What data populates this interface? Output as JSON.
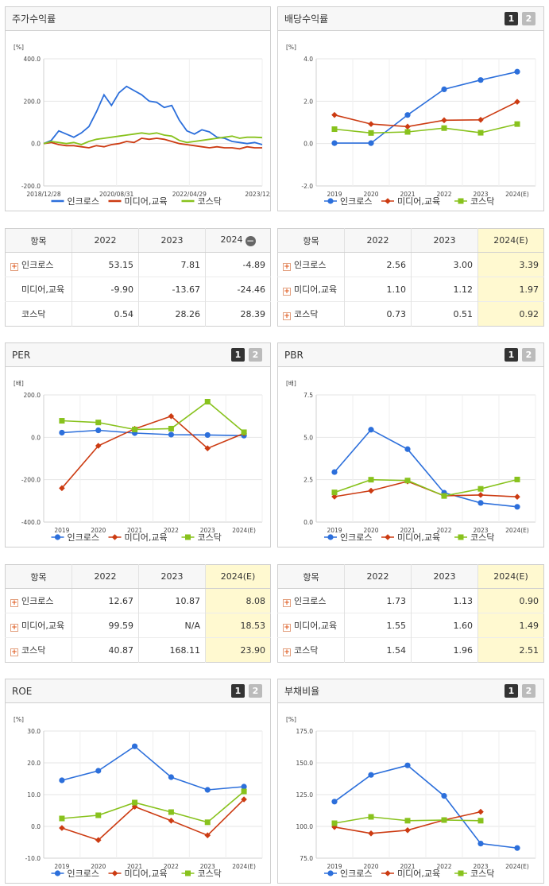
{
  "legend": [
    "인크로스",
    "미디어,교육",
    "코스닥"
  ],
  "colors": {
    "s0": "#2c6fdb",
    "s1": "#cc3b12",
    "s2": "#88c21d"
  },
  "panels": {
    "stock": {
      "title": "주가수익률"
    },
    "div": {
      "title": "배당수익률",
      "p1": "1",
      "p2": "2"
    },
    "per": {
      "title": "PER",
      "p1": "1",
      "p2": "2"
    },
    "pbr": {
      "title": "PBR",
      "p1": "1",
      "p2": "2"
    },
    "roe": {
      "title": "ROE",
      "p1": "1",
      "p2": "2"
    },
    "debt": {
      "title": "부채비율",
      "p1": "1",
      "p2": "2"
    }
  },
  "tables": {
    "stock": {
      "headers": [
        "항목",
        "2022",
        "2023",
        "2024"
      ],
      "rows": [
        {
          "name": "인크로스",
          "v": [
            "53.15",
            "7.81",
            "-4.89"
          ]
        },
        {
          "name": "미디어,교육",
          "v": [
            "-9.90",
            "-13.67",
            "-24.46"
          ]
        },
        {
          "name": "코스닥",
          "v": [
            "0.54",
            "28.26",
            "28.39"
          ]
        }
      ]
    },
    "div": {
      "headers": [
        "항목",
        "2022",
        "2023",
        "2024(E)"
      ],
      "rows": [
        {
          "name": "인크로스",
          "v": [
            "2.56",
            "3.00",
            "3.39"
          ]
        },
        {
          "name": "미디어,교육",
          "v": [
            "1.10",
            "1.12",
            "1.97"
          ]
        },
        {
          "name": "코스닥",
          "v": [
            "0.73",
            "0.51",
            "0.92"
          ]
        }
      ]
    },
    "per": {
      "headers": [
        "항목",
        "2022",
        "2023",
        "2024(E)"
      ],
      "rows": [
        {
          "name": "인크로스",
          "v": [
            "12.67",
            "10.87",
            "8.08"
          ]
        },
        {
          "name": "미디어,교육",
          "v": [
            "99.59",
            "N/A",
            "18.53"
          ]
        },
        {
          "name": "코스닥",
          "v": [
            "40.87",
            "168.11",
            "23.90"
          ]
        }
      ]
    },
    "pbr": {
      "headers": [
        "항목",
        "2022",
        "2023",
        "2024(E)"
      ],
      "rows": [
        {
          "name": "인크로스",
          "v": [
            "1.73",
            "1.13",
            "0.90"
          ]
        },
        {
          "name": "미디어,교육",
          "v": [
            "1.55",
            "1.60",
            "1.49"
          ]
        },
        {
          "name": "코스닥",
          "v": [
            "1.54",
            "1.96",
            "2.51"
          ]
        }
      ]
    }
  },
  "chart_data": [
    {
      "id": "stock",
      "type": "line",
      "unit": "[%]",
      "ylim": [
        -200,
        400
      ],
      "yticks": [
        "400.0",
        "200.0",
        "0.0",
        "-200.0"
      ],
      "xticks": [
        "2018/12/28",
        "2020/08/31",
        "2022/04/29",
        "2023/12/28"
      ],
      "x": [
        "2018/12",
        "2019/03",
        "2019/06",
        "2019/09",
        "2019/12",
        "2020/03",
        "2020/06",
        "2020/08",
        "2020/10",
        "2020/12",
        "2021/02",
        "2021/04",
        "2021/06",
        "2021/08",
        "2021/10",
        "2021/12",
        "2022/02",
        "2022/04",
        "2022/06",
        "2022/08",
        "2022/10",
        "2022/12",
        "2023/02",
        "2023/04",
        "2023/06",
        "2023/08",
        "2023/10",
        "2023/12",
        "2024/02",
        "2024/04"
      ],
      "series": [
        {
          "name": "인크로스",
          "values": [
            0,
            15,
            60,
            45,
            30,
            50,
            80,
            150,
            230,
            180,
            240,
            270,
            250,
            230,
            200,
            195,
            170,
            180,
            110,
            60,
            45,
            65,
            55,
            30,
            25,
            10,
            5,
            0,
            5,
            -5
          ]
        },
        {
          "name": "미디어,교육",
          "values": [
            0,
            5,
            -5,
            -10,
            -10,
            -15,
            -20,
            -10,
            -15,
            -5,
            0,
            10,
            5,
            25,
            20,
            25,
            20,
            10,
            0,
            -5,
            -10,
            -15,
            -20,
            -15,
            -20,
            -20,
            -25,
            -15,
            -20,
            -20
          ]
        },
        {
          "name": "코스닥",
          "values": [
            0,
            10,
            5,
            0,
            5,
            -5,
            10,
            20,
            25,
            30,
            35,
            40,
            45,
            50,
            45,
            50,
            40,
            35,
            15,
            5,
            10,
            15,
            20,
            25,
            30,
            35,
            25,
            30,
            30,
            28
          ]
        }
      ]
    },
    {
      "id": "div",
      "type": "line",
      "unit": "[%]",
      "ylim": [
        -2,
        4
      ],
      "yticks": [
        "4.0",
        "2.0",
        "0.0",
        "-2.0"
      ],
      "x": [
        "2019",
        "2020",
        "2021",
        "2022",
        "2023",
        "2024(E)"
      ],
      "series": [
        {
          "name": "인크로스",
          "values": [
            0.02,
            0.02,
            1.35,
            2.56,
            3.0,
            3.39
          ]
        },
        {
          "name": "미디어,교육",
          "values": [
            1.35,
            0.92,
            0.8,
            1.1,
            1.12,
            1.97
          ]
        },
        {
          "name": "코스닥",
          "values": [
            0.68,
            0.5,
            0.55,
            0.73,
            0.51,
            0.92
          ]
        }
      ]
    },
    {
      "id": "per",
      "type": "line",
      "unit": "[배]",
      "ylim": [
        -400,
        200
      ],
      "yticks": [
        "200.0",
        "0.0",
        "-200.0",
        "-400.0"
      ],
      "x": [
        "2019",
        "2020",
        "2021",
        "2022",
        "2023",
        "2024(E)"
      ],
      "series": [
        {
          "name": "인크로스",
          "values": [
            22,
            33,
            20,
            12.67,
            10.87,
            8.08
          ]
        },
        {
          "name": "미디어,교육",
          "values": [
            -240,
            -40,
            40,
            99.59,
            -52,
            18.53
          ]
        },
        {
          "name": "코스닥",
          "values": [
            78,
            70,
            37,
            40.87,
            168.11,
            23.9
          ]
        }
      ]
    },
    {
      "id": "pbr",
      "type": "line",
      "unit": "[배]",
      "ylim": [
        0,
        7.5
      ],
      "yticks": [
        "7.5",
        "5.0",
        "2.5",
        "0.0"
      ],
      "x": [
        "2019",
        "2020",
        "2021",
        "2022",
        "2023",
        "2024(E)"
      ],
      "series": [
        {
          "name": "인크로스",
          "values": [
            2.95,
            5.45,
            4.3,
            1.73,
            1.13,
            0.9
          ]
        },
        {
          "name": "미디어,교육",
          "values": [
            1.5,
            1.85,
            2.4,
            1.55,
            1.6,
            1.49
          ]
        },
        {
          "name": "코스닥",
          "values": [
            1.75,
            2.5,
            2.45,
            1.54,
            1.96,
            2.51
          ]
        }
      ]
    },
    {
      "id": "roe",
      "type": "line",
      "unit": "[%]",
      "ylim": [
        -10,
        30
      ],
      "yticks": [
        "30.0",
        "20.0",
        "10.0",
        "0.0",
        "-10.0"
      ],
      "x": [
        "2019",
        "2020",
        "2021",
        "2022",
        "2023",
        "2024(E)"
      ],
      "series": [
        {
          "name": "인크로스",
          "values": [
            14.5,
            17.5,
            25.2,
            15.5,
            11.5,
            12.5
          ]
        },
        {
          "name": "미디어,교육",
          "values": [
            -0.5,
            -4.3,
            6.2,
            1.8,
            -2.8,
            8.5
          ]
        },
        {
          "name": "코스닥",
          "values": [
            2.5,
            3.5,
            7.5,
            4.5,
            1.3,
            11.0
          ]
        }
      ]
    },
    {
      "id": "debt",
      "type": "line",
      "unit": "[%]",
      "ylim": [
        75,
        175
      ],
      "yticks": [
        "175.0",
        "150.0",
        "125.0",
        "100.0",
        "75.0"
      ],
      "x": [
        "2019",
        "2020",
        "2021",
        "2022",
        "2023",
        "2024(E)"
      ],
      "series": [
        {
          "name": "인크로스",
          "values": [
            119.5,
            140.5,
            148,
            124,
            86.5,
            83
          ]
        },
        {
          "name": "미디어,교육",
          "values": [
            99.5,
            94.5,
            97,
            105,
            111.5,
            null
          ]
        },
        {
          "name": "코스닥",
          "values": [
            102.5,
            107.5,
            104.5,
            105,
            104.5,
            null
          ]
        }
      ]
    }
  ]
}
